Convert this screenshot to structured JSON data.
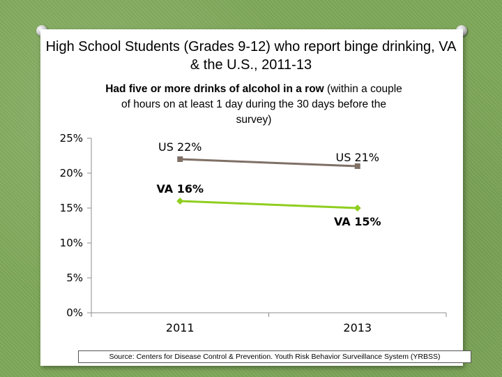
{
  "slide": {
    "title_bold": "High School Students (Grades 9-12) who report binge drinking,",
    "title_rest": " VA & the U.S., 2011-13",
    "subtitle_bold": "Had five or more drinks of alcohol in a row",
    "subtitle_rest": " (within a couple of hours on at least 1 day during the 30 days before the survey)",
    "source": "Source: Centers for Disease Control & Prevention. Youth Risk Behavior Surveillance System (YRBSS)"
  },
  "colors": {
    "background": "#7fa85a",
    "us_series": "#7f7066",
    "va_series": "#8fce1e"
  },
  "chart_data": {
    "type": "line",
    "title": "High School Students (Grades 9-12) who report binge drinking, VA & the U.S., 2011-13",
    "subtitle": "Had five or more drinks of alcohol in a row (within a couple of hours on at least 1 day during the 30 days before the survey)",
    "categories": [
      "2011",
      "2013"
    ],
    "series": [
      {
        "name": "US",
        "values": [
          22,
          21
        ],
        "labels": [
          "US  22%",
          "US  21%"
        ],
        "color": "#7f7066"
      },
      {
        "name": "VA",
        "values": [
          16,
          15
        ],
        "labels": [
          "VA  16%",
          "VA  15%"
        ],
        "color": "#8fce1e"
      }
    ],
    "ylim": [
      0,
      25
    ],
    "yticks": [
      0,
      5,
      10,
      15,
      20,
      25
    ],
    "ytick_labels": [
      "0%",
      "5%",
      "10%",
      "15%",
      "20%",
      "25%"
    ],
    "grid": false,
    "xlabel": "",
    "ylabel": ""
  }
}
